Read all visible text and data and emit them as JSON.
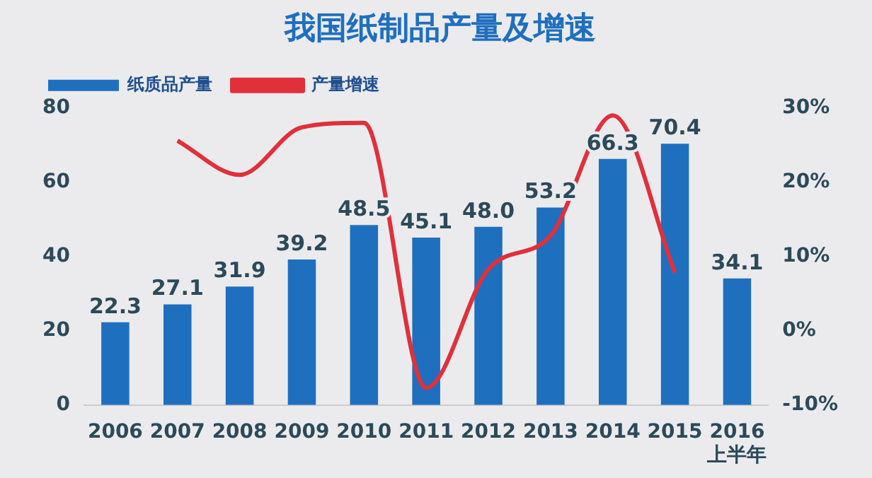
{
  "chart_data": {
    "type": "bar",
    "title": "我国纸制品产量及增速",
    "categories": [
      "2006",
      "2007",
      "2008",
      "2009",
      "2010",
      "2011",
      "2012",
      "2013",
      "2014",
      "2015",
      "2016\n上半年"
    ],
    "series": [
      {
        "name": "纸质品产量",
        "color": "#1f6fbf",
        "values": [
          22.3,
          27.1,
          31.9,
          39.2,
          48.5,
          45.1,
          48.0,
          53.2,
          66.3,
          70.4,
          34.1
        ],
        "value_labels": [
          "22.3",
          "27.1",
          "31.9",
          "39.2",
          "48.5",
          "45.1",
          "48.0",
          "53.2",
          "66.3",
          "70.4",
          "34.1"
        ]
      },
      {
        "name": "产量增速",
        "type": "line",
        "axis": "y2",
        "color": "#e0303a",
        "values": [
          null,
          25.6,
          21.0,
          27.4,
          28.0,
          -7.7,
          8.3,
          12.8,
          29.0,
          7.8,
          null
        ]
      }
    ],
    "ylim": [
      0,
      80
    ],
    "yticks": [
      0,
      20,
      40,
      60,
      80
    ],
    "y2lim": [
      -10,
      30
    ],
    "y2ticks": [
      {
        "value": -10,
        "label": "-10%"
      },
      {
        "value": 0,
        "label": "0%"
      },
      {
        "value": 10,
        "label": "10%"
      },
      {
        "value": 20,
        "label": "20%"
      },
      {
        "value": 30,
        "label": "30%"
      }
    ],
    "grid": false,
    "legend": "top left",
    "marker": "none",
    "line_style": "solid"
  }
}
